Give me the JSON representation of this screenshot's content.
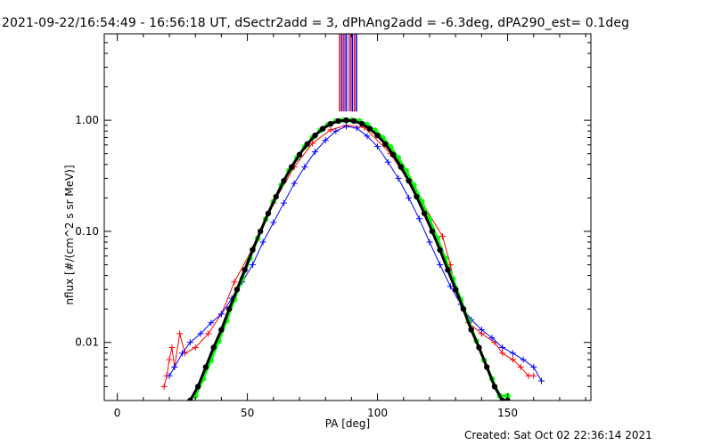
{
  "title": "2021-09-22/16:54:49 - 16:56:18 UT, dSectr2add = 3, dPhAng2add = -6.3deg, dPA290_est=  0.1deg",
  "created": "Created: Sat Oct 02 22:36:14 2021",
  "chart_data": {
    "type": "line",
    "xlabel": "PA [deg]",
    "ylabel": "nflux [#/(cm^2 s sr MeV)]",
    "xlim": [
      -5,
      182
    ],
    "ylim": [
      0.003,
      6.0
    ],
    "yscale": "log",
    "x_ticks": [
      0,
      50,
      100,
      150
    ],
    "x_tick_labels": [
      "0",
      "50",
      "100",
      "150"
    ],
    "y_ticks": [
      0.01,
      0.1,
      1.0
    ],
    "y_tick_labels": [
      "0.01",
      "0.10",
      "1.00"
    ],
    "grid": false,
    "legend": "none",
    "colors": {
      "red": "#ff0000",
      "blue": "#0000ff",
      "green": "#00ff00",
      "black": "#000000"
    },
    "vertical_bars": {
      "x": [
        85.5,
        86.3,
        87.1,
        87.9,
        88.7,
        89.5,
        90.3,
        91.1,
        91.9
      ],
      "y_from": 1.2,
      "colors": [
        "#ff0000",
        "#0000ff",
        "#ff0000",
        "#0000ff",
        "#8080ff",
        "#ff0000",
        "#0000ff",
        "#ff0000",
        "#0000ff"
      ]
    },
    "series": [
      {
        "color": "#ff0000",
        "marker": "plus",
        "x": [
          18,
          19,
          20,
          21,
          22,
          24,
          26,
          30,
          35,
          40,
          45,
          52,
          60,
          68,
          75,
          82,
          88,
          95,
          105,
          115,
          125,
          128,
          130,
          135,
          140,
          145,
          148,
          152,
          155,
          158,
          160
        ],
        "y": [
          0.004,
          0.005,
          0.007,
          0.009,
          0.006,
          0.012,
          0.008,
          0.009,
          0.012,
          0.018,
          0.035,
          0.07,
          0.18,
          0.38,
          0.62,
          0.82,
          0.9,
          0.86,
          0.5,
          0.22,
          0.09,
          0.05,
          0.03,
          0.015,
          0.012,
          0.01,
          0.008,
          0.007,
          0.006,
          0.005,
          0.005
        ]
      },
      {
        "color": "#0000ff",
        "marker": "plus",
        "x": [
          20,
          22,
          25,
          28,
          32,
          36,
          40,
          44,
          48,
          52,
          56,
          60,
          64,
          68,
          72,
          76,
          80,
          84,
          88,
          92,
          96,
          100,
          104,
          108,
          112,
          116,
          120,
          124,
          128,
          132,
          136,
          140,
          144,
          148,
          152,
          156,
          160,
          163
        ],
        "y": [
          0.005,
          0.006,
          0.008,
          0.01,
          0.012,
          0.015,
          0.018,
          0.025,
          0.035,
          0.05,
          0.08,
          0.12,
          0.18,
          0.27,
          0.38,
          0.52,
          0.66,
          0.8,
          0.88,
          0.85,
          0.72,
          0.58,
          0.42,
          0.3,
          0.2,
          0.13,
          0.08,
          0.05,
          0.032,
          0.022,
          0.016,
          0.013,
          0.011,
          0.009,
          0.008,
          0.007,
          0.006,
          0.0045
        ]
      },
      {
        "color": "#00ff00",
        "marker": "dot",
        "x": [
          30,
          33,
          36,
          39,
          42,
          45,
          48,
          51,
          54,
          57,
          60,
          63,
          66,
          69,
          72,
          75,
          78,
          81,
          84,
          87,
          90,
          93,
          96,
          99,
          102,
          105,
          108,
          111,
          114,
          117,
          120,
          123,
          126,
          129,
          132,
          135,
          138,
          141,
          144,
          147,
          150
        ],
        "y": [
          0.0033,
          0.0047,
          0.0069,
          0.0103,
          0.0157,
          0.0242,
          0.0373,
          0.0572,
          0.0866,
          0.1284,
          0.1856,
          0.2597,
          0.3513,
          0.4578,
          0.5751,
          0.6962,
          0.8115,
          0.9119,
          0.9858,
          1.0,
          1.0,
          0.9858,
          0.9119,
          0.8115,
          0.6962,
          0.5751,
          0.4578,
          0.3513,
          0.2597,
          0.1856,
          0.1284,
          0.0866,
          0.0572,
          0.0373,
          0.0242,
          0.0157,
          0.0103,
          0.0069,
          0.0047,
          0.0033,
          0.0033
        ]
      },
      {
        "color": "#000000",
        "marker": "dot",
        "x": [
          28,
          31,
          34,
          37,
          40,
          43,
          46,
          49,
          52,
          55,
          58,
          61,
          64,
          67,
          70,
          73,
          76,
          79,
          82,
          85,
          88,
          91,
          94,
          97,
          100,
          103,
          106,
          109,
          112,
          115,
          118,
          121,
          124,
          127,
          130,
          133,
          136,
          139,
          142,
          145,
          148,
          150
        ],
        "y": [
          0.003,
          0.004,
          0.006,
          0.009,
          0.013,
          0.02,
          0.03,
          0.045,
          0.068,
          0.1,
          0.145,
          0.205,
          0.285,
          0.38,
          0.49,
          0.61,
          0.73,
          0.84,
          0.93,
          0.985,
          1.0,
          0.985,
          0.93,
          0.84,
          0.73,
          0.61,
          0.49,
          0.38,
          0.285,
          0.205,
          0.145,
          0.1,
          0.068,
          0.045,
          0.03,
          0.02,
          0.013,
          0.009,
          0.006,
          0.004,
          0.003,
          0.003
        ]
      }
    ]
  }
}
